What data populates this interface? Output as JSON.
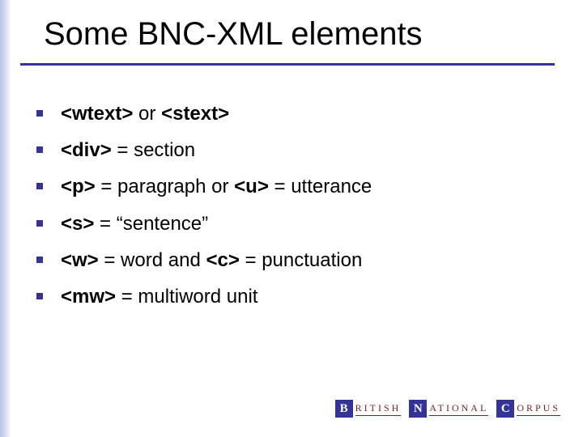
{
  "title": "Some BNC-XML  elements",
  "colors": {
    "accent": "#333399",
    "text": "#000000",
    "logo_text": "#7a1f1f",
    "background": "#ffffff"
  },
  "bullets": [
    {
      "segments": [
        {
          "text": "<wtext>",
          "bold": true
        },
        {
          "text": " or ",
          "bold": false
        },
        {
          "text": "<stext>",
          "bold": true
        }
      ]
    },
    {
      "segments": [
        {
          "text": "<div>",
          "bold": true
        },
        {
          "text": " = section",
          "bold": false
        }
      ]
    },
    {
      "segments": [
        {
          "text": "<p>",
          "bold": true
        },
        {
          "text": " = paragraph  or  ",
          "bold": false
        },
        {
          "text": "<u>",
          "bold": true
        },
        {
          "text": " = utterance",
          "bold": false
        }
      ]
    },
    {
      "segments": [
        {
          "text": "<s>",
          "bold": true
        },
        {
          "text": " = “sentence”",
          "bold": false
        }
      ]
    },
    {
      "segments": [
        {
          "text": "<w>",
          "bold": true
        },
        {
          "text": " = word  and  ",
          "bold": false
        },
        {
          "text": "<c>",
          "bold": true
        },
        {
          "text": " = punctuation",
          "bold": false
        }
      ]
    },
    {
      "segments": [
        {
          "text": "<mw>",
          "bold": true
        },
        {
          "text": " = multiword unit",
          "bold": false
        }
      ]
    }
  ],
  "footer": {
    "parts": [
      {
        "letter": "B",
        "word": "RITISH"
      },
      {
        "letter": "N",
        "word": "ATIONAL"
      },
      {
        "letter": "C",
        "word": "ORPUS"
      }
    ]
  }
}
